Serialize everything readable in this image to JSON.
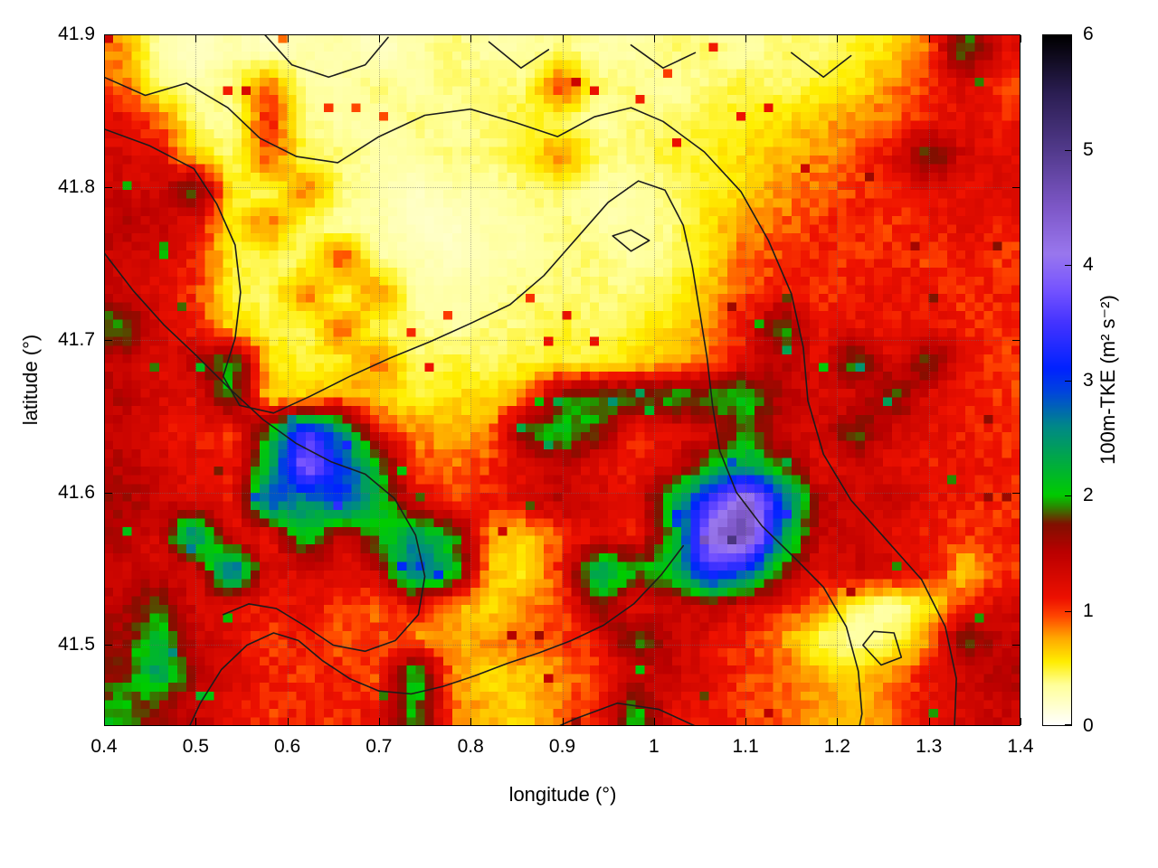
{
  "figure": {
    "xlabel": "longitude (°)",
    "ylabel": "latitude (°)",
    "colorbar_label": "100m-TKE (m² s⁻²)"
  },
  "chart_data": {
    "type": "heatmap",
    "title": "",
    "xlabel": "longitude (°)",
    "ylabel": "latitude (°)",
    "colorbar_label": "100m-TKE (m² s⁻²)",
    "xlim": [
      0.4,
      1.4
    ],
    "ylim": [
      41.447,
      41.9
    ],
    "zlim": [
      0,
      6
    ],
    "grid": true,
    "x_ticks": {
      "values": [
        0.4,
        0.5,
        0.6,
        0.7,
        0.8,
        0.9,
        1.0,
        1.1,
        1.2,
        1.3,
        1.4
      ],
      "labels": [
        "0.4",
        "0.5",
        "0.6",
        "0.7",
        "0.8",
        "0.9",
        "1",
        "1.1",
        "1.2",
        "1.3",
        "1.4"
      ]
    },
    "y_ticks": {
      "values": [
        41.5,
        41.6,
        41.7,
        41.8,
        41.9
      ],
      "labels": [
        "41.5",
        "41.6",
        "41.7",
        "41.8",
        "41.9"
      ]
    },
    "cb_ticks": {
      "values": [
        0,
        1,
        2,
        3,
        4,
        5,
        6
      ],
      "labels": [
        "0",
        "1",
        "2",
        "3",
        "4",
        "5",
        "6"
      ]
    },
    "palette": [
      [
        0.0,
        "#ffffff"
      ],
      [
        0.35,
        "#ffff99"
      ],
      [
        0.55,
        "#ffee00"
      ],
      [
        0.75,
        "#ffaa00"
      ],
      [
        0.95,
        "#ff4400"
      ],
      [
        1.1,
        "#ee1100"
      ],
      [
        1.5,
        "#bb0000"
      ],
      [
        1.75,
        "#801000"
      ],
      [
        1.9,
        "#2a8800"
      ],
      [
        2.0,
        "#00cc00"
      ],
      [
        2.3,
        "#00aa44"
      ],
      [
        2.6,
        "#008888"
      ],
      [
        2.9,
        "#0044dd"
      ],
      [
        3.1,
        "#0022ff"
      ],
      [
        3.5,
        "#4433ff"
      ],
      [
        3.8,
        "#7755ff"
      ],
      [
        4.1,
        "#9977ee"
      ],
      [
        4.5,
        "#7e58c8"
      ],
      [
        5.0,
        "#523a8c"
      ],
      [
        5.5,
        "#2b1e52"
      ],
      [
        6.0,
        "#000000"
      ]
    ],
    "grid_values": {
      "ncols": 25,
      "nrows": 20,
      "lon_range": [
        0.4,
        1.4
      ],
      "lat_range": [
        41.447,
        41.9
      ],
      "rows_top_to_bottom": [
        [
          0.8,
          0.3,
          0.2,
          0.3,
          0.2,
          0.3,
          0.3,
          0.2,
          0.3,
          0.4,
          0.3,
          0.3,
          0.4,
          0.3,
          0.3,
          0.4,
          0.4,
          0.3,
          0.4,
          0.4,
          0.5,
          0.6,
          0.9,
          2.0,
          1.2
        ],
        [
          0.9,
          0.4,
          0.3,
          0.4,
          0.9,
          0.3,
          0.3,
          0.4,
          0.3,
          0.4,
          0.4,
          0.4,
          1.0,
          0.4,
          0.4,
          0.3,
          0.4,
          0.5,
          0.4,
          0.5,
          0.6,
          0.8,
          1.0,
          1.3,
          1.0
        ],
        [
          1.2,
          0.9,
          0.4,
          0.3,
          1.1,
          0.4,
          0.3,
          0.3,
          0.4,
          0.3,
          0.4,
          0.5,
          0.4,
          0.3,
          0.4,
          0.4,
          0.5,
          0.5,
          0.6,
          0.7,
          0.8,
          0.9,
          1.1,
          1.2,
          1.1
        ],
        [
          1.3,
          1.2,
          0.6,
          0.4,
          1.0,
          0.4,
          0.4,
          0.3,
          0.3,
          0.4,
          0.4,
          0.5,
          0.9,
          0.4,
          0.4,
          0.5,
          0.5,
          0.6,
          0.7,
          0.8,
          0.9,
          1.2,
          1.9,
          1.3,
          1.2
        ],
        [
          1.4,
          1.3,
          1.9,
          0.5,
          0.4,
          0.9,
          0.4,
          0.3,
          0.2,
          0.3,
          0.3,
          0.4,
          0.4,
          0.3,
          0.3,
          0.4,
          0.5,
          0.6,
          0.8,
          0.9,
          1.0,
          1.1,
          1.2,
          1.1,
          1.3
        ],
        [
          1.5,
          1.4,
          1.2,
          0.5,
          0.9,
          0.4,
          0.3,
          0.3,
          0.2,
          0.2,
          0.3,
          0.3,
          0.4,
          0.3,
          0.3,
          0.4,
          0.6,
          0.8,
          0.9,
          1.0,
          1.1,
          1.0,
          1.1,
          1.2,
          1.1
        ],
        [
          1.4,
          1.3,
          1.1,
          0.5,
          0.4,
          0.4,
          1.0,
          0.3,
          0.3,
          0.2,
          0.3,
          0.3,
          0.4,
          0.4,
          0.3,
          0.4,
          0.6,
          0.9,
          1.0,
          1.1,
          1.0,
          1.1,
          1.0,
          1.1,
          1.0
        ],
        [
          1.4,
          1.2,
          1.0,
          0.5,
          0.4,
          0.9,
          0.4,
          0.9,
          0.3,
          0.3,
          0.3,
          0.4,
          0.4,
          0.4,
          0.4,
          0.5,
          0.7,
          1.0,
          1.1,
          1.0,
          1.1,
          1.2,
          1.1,
          1.0,
          1.1
        ],
        [
          2.0,
          1.3,
          1.1,
          0.6,
          0.5,
          0.4,
          0.9,
          0.4,
          0.4,
          0.3,
          0.4,
          0.4,
          0.5,
          0.4,
          0.5,
          0.6,
          0.8,
          1.1,
          2.0,
          1.1,
          1.2,
          1.1,
          1.2,
          1.1,
          1.0
        ],
        [
          1.4,
          1.2,
          1.5,
          2.1,
          0.6,
          0.5,
          0.5,
          0.9,
          0.4,
          0.5,
          0.4,
          0.5,
          0.5,
          0.5,
          0.6,
          0.7,
          0.9,
          1.2,
          1.5,
          1.2,
          2.0,
          1.2,
          1.9,
          1.1,
          1.0
        ],
        [
          1.5,
          1.3,
          1.2,
          2.0,
          0.6,
          0.6,
          0.8,
          0.6,
          0.5,
          0.6,
          0.6,
          0.8,
          1.8,
          2.0,
          1.9,
          2.0,
          1.9,
          2.2,
          1.5,
          1.3,
          1.2,
          1.9,
          1.2,
          1.1,
          1.0
        ],
        [
          1.4,
          1.2,
          1.1,
          1.0,
          2.0,
          3.5,
          2.5,
          1.2,
          0.8,
          0.7,
          0.8,
          1.9,
          2.1,
          1.8,
          1.0,
          1.2,
          1.3,
          1.9,
          1.4,
          1.3,
          1.9,
          1.3,
          1.2,
          1.1,
          1.0
        ],
        [
          1.5,
          1.3,
          1.2,
          1.1,
          2.2,
          4.0,
          3.0,
          2.0,
          1.0,
          0.9,
          1.0,
          1.2,
          1.4,
          1.2,
          1.1,
          1.3,
          2.0,
          2.5,
          1.8,
          1.2,
          1.3,
          1.2,
          1.1,
          1.2,
          1.1
        ],
        [
          1.6,
          1.4,
          1.2,
          1.1,
          3.0,
          2.5,
          3.0,
          2.2,
          1.2,
          1.0,
          1.1,
          1.3,
          1.5,
          1.3,
          1.2,
          2.2,
          3.5,
          4.5,
          3.0,
          1.5,
          1.3,
          1.4,
          1.2,
          1.1,
          1.0
        ],
        [
          1.5,
          1.3,
          2.8,
          1.2,
          1.1,
          2.2,
          1.3,
          2.0,
          2.5,
          2.0,
          0.8,
          0.6,
          1.0,
          1.2,
          1.1,
          2.0,
          4.2,
          4.8,
          2.5,
          1.4,
          1.3,
          1.2,
          1.1,
          1.0,
          1.1
        ],
        [
          1.4,
          1.3,
          1.2,
          3.0,
          1.2,
          1.3,
          1.2,
          1.4,
          3.0,
          2.2,
          0.7,
          0.5,
          1.1,
          2.5,
          2.0,
          2.2,
          3.5,
          3.0,
          1.8,
          1.2,
          1.4,
          1.3,
          1.2,
          0.6,
          1.0
        ],
        [
          1.5,
          1.9,
          1.3,
          1.2,
          1.1,
          1.2,
          1.0,
          0.9,
          1.2,
          0.8,
          0.6,
          0.8,
          0.9,
          1.9,
          1.1,
          1.3,
          1.5,
          1.3,
          1.1,
          0.9,
          0.4,
          0.3,
          0.5,
          1.0,
          1.3
        ],
        [
          1.6,
          2.2,
          1.4,
          1.2,
          1.0,
          1.1,
          0.9,
          1.0,
          0.8,
          0.7,
          0.8,
          0.9,
          1.0,
          1.1,
          2.0,
          1.4,
          1.2,
          1.0,
          0.8,
          0.4,
          0.3,
          0.4,
          0.8,
          1.9,
          1.4
        ],
        [
          1.7,
          2.5,
          1.5,
          1.3,
          1.1,
          1.0,
          1.1,
          0.9,
          2.2,
          0.8,
          0.6,
          0.7,
          0.8,
          1.0,
          1.3,
          1.4,
          1.2,
          1.0,
          0.9,
          0.7,
          0.6,
          0.8,
          1.1,
          1.4,
          1.5
        ],
        [
          2.0,
          1.6,
          1.4,
          1.2,
          1.0,
          1.1,
          1.0,
          1.2,
          2.0,
          0.9,
          0.7,
          0.6,
          0.9,
          1.1,
          2.0,
          1.2,
          1.1,
          1.0,
          0.9,
          0.8,
          0.7,
          0.9,
          1.2,
          1.3,
          1.4
        ]
      ]
    },
    "contour_color": "#1c1c1c",
    "contours": [
      [
        [
          0.575,
          41.9
        ],
        [
          0.605,
          41.88
        ],
        [
          0.645,
          41.872
        ],
        [
          0.685,
          41.88
        ],
        [
          0.71,
          41.898
        ]
      ],
      [
        [
          0.82,
          41.895
        ],
        [
          0.855,
          41.878
        ],
        [
          0.885,
          41.89
        ]
      ],
      [
        [
          0.975,
          41.893
        ],
        [
          1.01,
          41.878
        ],
        [
          1.045,
          41.888
        ]
      ],
      [
        [
          1.15,
          41.888
        ],
        [
          1.185,
          41.872
        ],
        [
          1.215,
          41.886
        ]
      ],
      [
        [
          0.4,
          41.872
        ],
        [
          0.445,
          41.86
        ],
        [
          0.49,
          41.868
        ],
        [
          0.535,
          41.852
        ],
        [
          0.57,
          41.832
        ],
        [
          0.61,
          41.82
        ],
        [
          0.655,
          41.816
        ],
        [
          0.7,
          41.833
        ],
        [
          0.75,
          41.847
        ],
        [
          0.8,
          41.851
        ],
        [
          0.85,
          41.842
        ],
        [
          0.895,
          41.833
        ],
        [
          0.935,
          41.846
        ],
        [
          0.975,
          41.852
        ],
        [
          1.01,
          41.843
        ],
        [
          1.055,
          41.823
        ],
        [
          1.095,
          41.797
        ],
        [
          1.125,
          41.765
        ],
        [
          1.15,
          41.73
        ],
        [
          1.163,
          41.695
        ],
        [
          1.168,
          41.66
        ],
        [
          1.185,
          41.625
        ],
        [
          1.215,
          41.595
        ],
        [
          1.255,
          41.568
        ],
        [
          1.292,
          41.543
        ],
        [
          1.318,
          41.512
        ],
        [
          1.33,
          41.478
        ],
        [
          1.328,
          41.447
        ]
      ],
      [
        [
          0.4,
          41.838
        ],
        [
          0.45,
          41.827
        ],
        [
          0.498,
          41.812
        ],
        [
          0.523,
          41.789
        ],
        [
          0.543,
          41.762
        ],
        [
          0.549,
          41.731
        ],
        [
          0.543,
          41.701
        ],
        [
          0.53,
          41.676
        ],
        [
          0.548,
          41.657
        ],
        [
          0.585,
          41.652
        ],
        [
          0.625,
          41.663
        ],
        [
          0.668,
          41.676
        ],
        [
          0.712,
          41.688
        ],
        [
          0.757,
          41.699
        ],
        [
          0.801,
          41.711
        ],
        [
          0.843,
          41.723
        ],
        [
          0.88,
          41.742
        ],
        [
          0.915,
          41.766
        ],
        [
          0.95,
          41.79
        ],
        [
          0.983,
          41.804
        ],
        [
          1.012,
          41.798
        ],
        [
          1.032,
          41.775
        ],
        [
          1.042,
          41.748
        ],
        [
          1.05,
          41.718
        ],
        [
          1.058,
          41.688
        ],
        [
          1.064,
          41.657
        ],
        [
          1.072,
          41.627
        ],
        [
          1.09,
          41.6
        ],
        [
          1.118,
          41.578
        ],
        [
          1.152,
          41.558
        ],
        [
          1.185,
          41.538
        ],
        [
          1.21,
          41.512
        ],
        [
          1.223,
          41.483
        ],
        [
          1.227,
          41.455
        ],
        [
          1.222,
          41.44
        ]
      ],
      [
        [
          0.955,
          41.768
        ],
        [
          0.975,
          41.758
        ],
        [
          0.995,
          41.765
        ],
        [
          0.975,
          41.772
        ],
        [
          0.955,
          41.768
        ]
      ],
      [
        [
          0.4,
          41.757
        ],
        [
          0.432,
          41.732
        ],
        [
          0.465,
          41.71
        ],
        [
          0.5,
          41.69
        ],
        [
          0.537,
          41.668
        ],
        [
          0.573,
          41.648
        ],
        [
          0.61,
          41.632
        ],
        [
          0.648,
          41.62
        ],
        [
          0.685,
          41.612
        ],
        [
          0.717,
          41.596
        ],
        [
          0.74,
          41.572
        ],
        [
          0.75,
          41.545
        ],
        [
          0.743,
          41.52
        ],
        [
          0.718,
          41.503
        ],
        [
          0.685,
          41.496
        ],
        [
          0.65,
          41.5
        ],
        [
          0.618,
          41.513
        ],
        [
          0.588,
          41.524
        ],
        [
          0.558,
          41.527
        ],
        [
          0.53,
          41.52
        ]
      ],
      [
        [
          0.488,
          41.44
        ],
        [
          0.505,
          41.462
        ],
        [
          0.528,
          41.484
        ],
        [
          0.556,
          41.5
        ],
        [
          0.585,
          41.508
        ],
        [
          0.612,
          41.503
        ],
        [
          0.638,
          41.49
        ],
        [
          0.668,
          41.478
        ],
        [
          0.7,
          41.47
        ],
        [
          0.735,
          41.468
        ],
        [
          0.77,
          41.473
        ],
        [
          0.805,
          41.48
        ],
        [
          0.84,
          41.488
        ],
        [
          0.875,
          41.495
        ],
        [
          0.91,
          41.503
        ],
        [
          0.945,
          41.513
        ],
        [
          0.978,
          41.527
        ],
        [
          1.008,
          41.546
        ],
        [
          1.032,
          41.565
        ]
      ],
      [
        [
          1.228,
          41.5
        ],
        [
          1.248,
          41.487
        ],
        [
          1.27,
          41.492
        ],
        [
          1.262,
          41.508
        ],
        [
          1.24,
          41.509
        ],
        [
          1.228,
          41.5
        ]
      ],
      [
        [
          0.87,
          41.44
        ],
        [
          0.915,
          41.452
        ],
        [
          0.96,
          41.462
        ],
        [
          1.005,
          41.458
        ],
        [
          1.045,
          41.447
        ],
        [
          1.07,
          41.44
        ]
      ]
    ]
  }
}
